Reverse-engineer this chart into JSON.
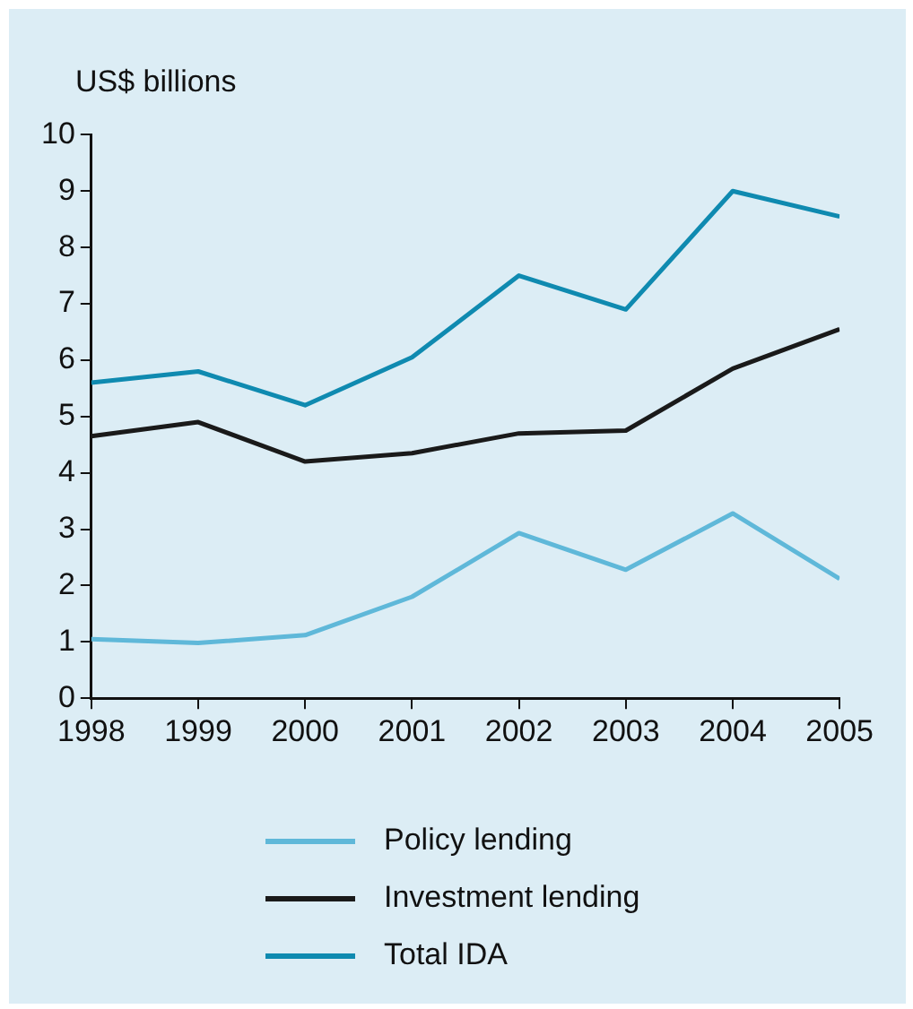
{
  "chart_data": {
    "type": "line",
    "ylabel": "US$ billions",
    "x": [
      1998,
      1999,
      2000,
      2001,
      2002,
      2003,
      2004,
      2005
    ],
    "xlim": [
      1998,
      2005
    ],
    "xticks": [
      1998,
      1999,
      2000,
      2001,
      2002,
      2003,
      2004,
      2005
    ],
    "ylim": [
      0,
      10
    ],
    "yticks": [
      0,
      1,
      2,
      3,
      4,
      5,
      6,
      7,
      8,
      9,
      10
    ],
    "grid": false,
    "legend": "bottom",
    "marker": "none",
    "line_style": "solid",
    "series": [
      {
        "name": "Policy lending",
        "color": "#5fb8d9",
        "values": [
          1.05,
          0.98,
          1.12,
          1.8,
          2.93,
          2.28,
          3.28,
          2.12
        ]
      },
      {
        "name": "Investment lending",
        "color": "#1a1a1a",
        "values": [
          4.65,
          4.9,
          4.2,
          4.35,
          4.7,
          4.75,
          5.85,
          6.55
        ]
      },
      {
        "name": "Total IDA",
        "color": "#0f8ab0",
        "values": [
          5.6,
          5.8,
          5.2,
          6.05,
          7.5,
          6.9,
          9.0,
          8.55
        ]
      }
    ]
  }
}
